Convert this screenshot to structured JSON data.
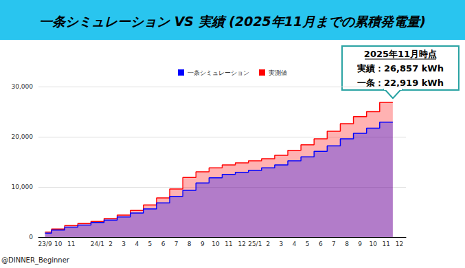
{
  "chart_data": {
    "type": "area",
    "title": "一条シミュレーション VS 実績 (2025年11月までの累積発電量)",
    "categories": [
      "23/9",
      "10",
      "11",
      null,
      "24/1",
      "2",
      "3",
      "4",
      "5",
      "6",
      "7",
      "8",
      "9",
      "10",
      "11",
      "12",
      "25/1",
      "2",
      "3",
      "4",
      "5",
      "6",
      "7",
      "8",
      "9",
      "10",
      "11",
      "12"
    ],
    "series": [
      {
        "name": "実測値",
        "color": "#ff0000",
        "values": [
          1000,
          1600,
          2300,
          2700,
          3100,
          3700,
          4400,
          5300,
          6400,
          7800,
          9600,
          11900,
          13000,
          13800,
          14400,
          14800,
          15200,
          15600,
          16300,
          17300,
          18400,
          19600,
          21100,
          22600,
          24000,
          25000,
          26857,
          null
        ]
      },
      {
        "name": "一条シミュレーション",
        "color": "#0000ff",
        "values": [
          800,
          1400,
          2000,
          2400,
          2900,
          3400,
          4000,
          4800,
          5600,
          6800,
          8100,
          9300,
          10800,
          11800,
          12500,
          12900,
          13300,
          13800,
          14400,
          15200,
          16000,
          17100,
          18200,
          19600,
          20700,
          21700,
          22919,
          null
        ]
      }
    ],
    "ylim": [
      0,
      30000
    ],
    "yticks": [
      0,
      10000,
      20000,
      30000
    ],
    "grid": true,
    "legend": "top",
    "line_style": "step",
    "annotation": [
      "2025年11月時点",
      "実績：26,857 kWh",
      "一条：22,919 kWh"
    ],
    "source": "@DINNER_Beginner"
  }
}
